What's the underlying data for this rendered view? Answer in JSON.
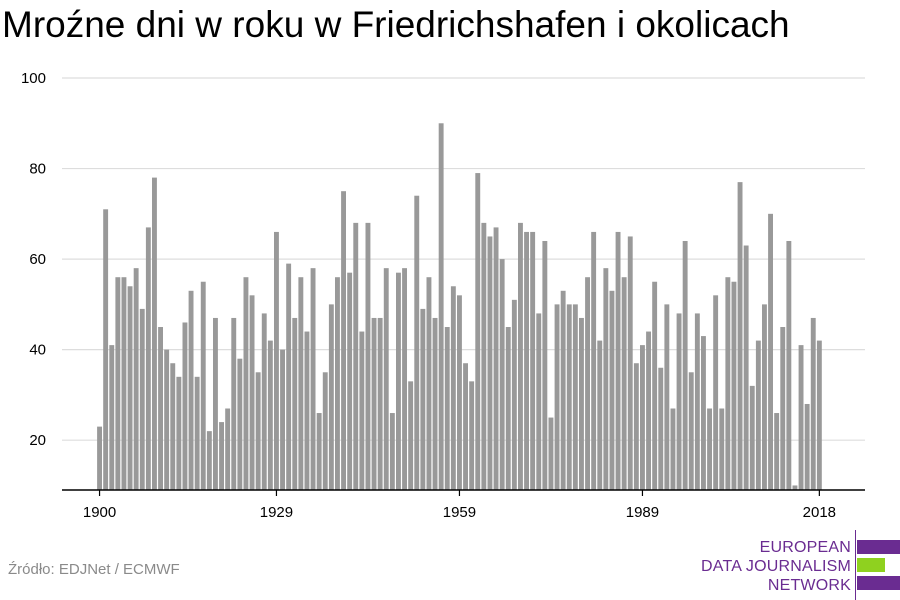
{
  "chart_data": {
    "type": "bar",
    "title": "Mroźne dni w roku w Friedrichshafen i okolicach",
    "xlabel": "",
    "ylabel": "",
    "x": [
      1900,
      1901,
      1902,
      1903,
      1904,
      1905,
      1906,
      1907,
      1908,
      1909,
      1910,
      1911,
      1912,
      1913,
      1914,
      1915,
      1916,
      1917,
      1918,
      1919,
      1920,
      1921,
      1922,
      1923,
      1924,
      1925,
      1926,
      1927,
      1928,
      1929,
      1930,
      1931,
      1932,
      1933,
      1934,
      1935,
      1936,
      1937,
      1938,
      1939,
      1940,
      1941,
      1942,
      1943,
      1944,
      1945,
      1946,
      1947,
      1948,
      1949,
      1950,
      1951,
      1952,
      1953,
      1954,
      1955,
      1956,
      1957,
      1958,
      1959,
      1960,
      1961,
      1962,
      1963,
      1964,
      1965,
      1966,
      1967,
      1968,
      1969,
      1970,
      1971,
      1972,
      1973,
      1974,
      1975,
      1976,
      1977,
      1978,
      1979,
      1980,
      1981,
      1982,
      1983,
      1984,
      1985,
      1986,
      1987,
      1988,
      1989,
      1990,
      1991,
      1992,
      1993,
      1994,
      1995,
      1996,
      1997,
      1998,
      1999,
      2000,
      2001,
      2002,
      2003,
      2004,
      2005,
      2006,
      2007,
      2008,
      2009,
      2010,
      2011,
      2012,
      2013,
      2014,
      2015,
      2016,
      2017,
      2018
    ],
    "values": [
      23,
      71,
      41,
      56,
      56,
      54,
      58,
      49,
      67,
      78,
      45,
      40,
      37,
      34,
      46,
      53,
      34,
      55,
      22,
      47,
      24,
      27,
      47,
      38,
      56,
      52,
      35,
      48,
      42,
      66,
      40,
      59,
      47,
      56,
      44,
      58,
      26,
      35,
      50,
      56,
      75,
      57,
      68,
      44,
      68,
      47,
      47,
      58,
      26,
      57,
      58,
      33,
      74,
      49,
      56,
      47,
      90,
      45,
      54,
      52,
      37,
      33,
      79,
      68,
      65,
      67,
      60,
      45,
      51,
      68,
      66,
      66,
      48,
      64,
      25,
      50,
      53,
      50,
      50,
      47,
      56,
      66,
      42,
      58,
      53,
      66,
      56,
      65,
      37,
      41,
      44,
      55,
      36,
      50,
      27,
      48,
      64,
      35,
      48,
      43,
      27,
      52,
      27,
      56,
      55,
      77,
      63,
      32,
      42,
      50,
      70,
      26,
      45,
      64,
      10,
      41,
      28,
      47,
      42
    ],
    "x_ticks": [
      1900,
      1929,
      1959,
      1989,
      2018
    ],
    "y_ticks": [
      20,
      40,
      60,
      80,
      100
    ],
    "ylim": [
      9,
      100
    ],
    "grid": "horizontal",
    "colors": {
      "bar": "#999999",
      "grid": "#dddddd",
      "axis": "#000000"
    }
  },
  "source": "Źródło: EDJNet / ECMWF",
  "logo": {
    "lines": [
      "EUROPEAN",
      "DATA JOURNALISM",
      "NETWORK"
    ],
    "text_color": "#6a2c91",
    "bar_colors": [
      "#6a2c91",
      "#8fd11f",
      "#6a2c91"
    ]
  }
}
